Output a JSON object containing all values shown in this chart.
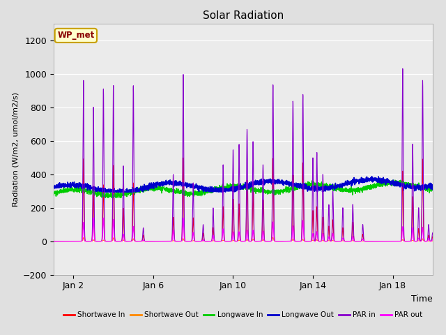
{
  "title": "Solar Radiation",
  "ylabel": "Radiation (W/m2, umol/m2/s)",
  "xlabel": "Time",
  "ylim": [
    -200,
    1300
  ],
  "yticks": [
    -200,
    0,
    200,
    400,
    600,
    800,
    1000,
    1200
  ],
  "background_color": "#e0e0e0",
  "plot_bg_color": "#ebebeb",
  "annotation_text": "WP_met",
  "annotation_bg": "#ffffcc",
  "annotation_border": "#c8a000",
  "annotation_text_color": "#880000",
  "legend_entries": [
    "Shortwave In",
    "Shortwave Out",
    "Longwave In",
    "Longwave Out",
    "PAR in",
    "PAR out"
  ],
  "legend_colors": [
    "#ff0000",
    "#ff8800",
    "#00cc00",
    "#0000cc",
    "#8800cc",
    "#ff00ff"
  ],
  "xtick_labels": [
    "Jan 2",
    "Jan 6",
    "Jan 10",
    "Jan 14",
    "Jan 18"
  ],
  "xtick_positions": [
    1,
    5,
    9,
    13,
    17
  ],
  "num_days": 19,
  "seed": 42
}
